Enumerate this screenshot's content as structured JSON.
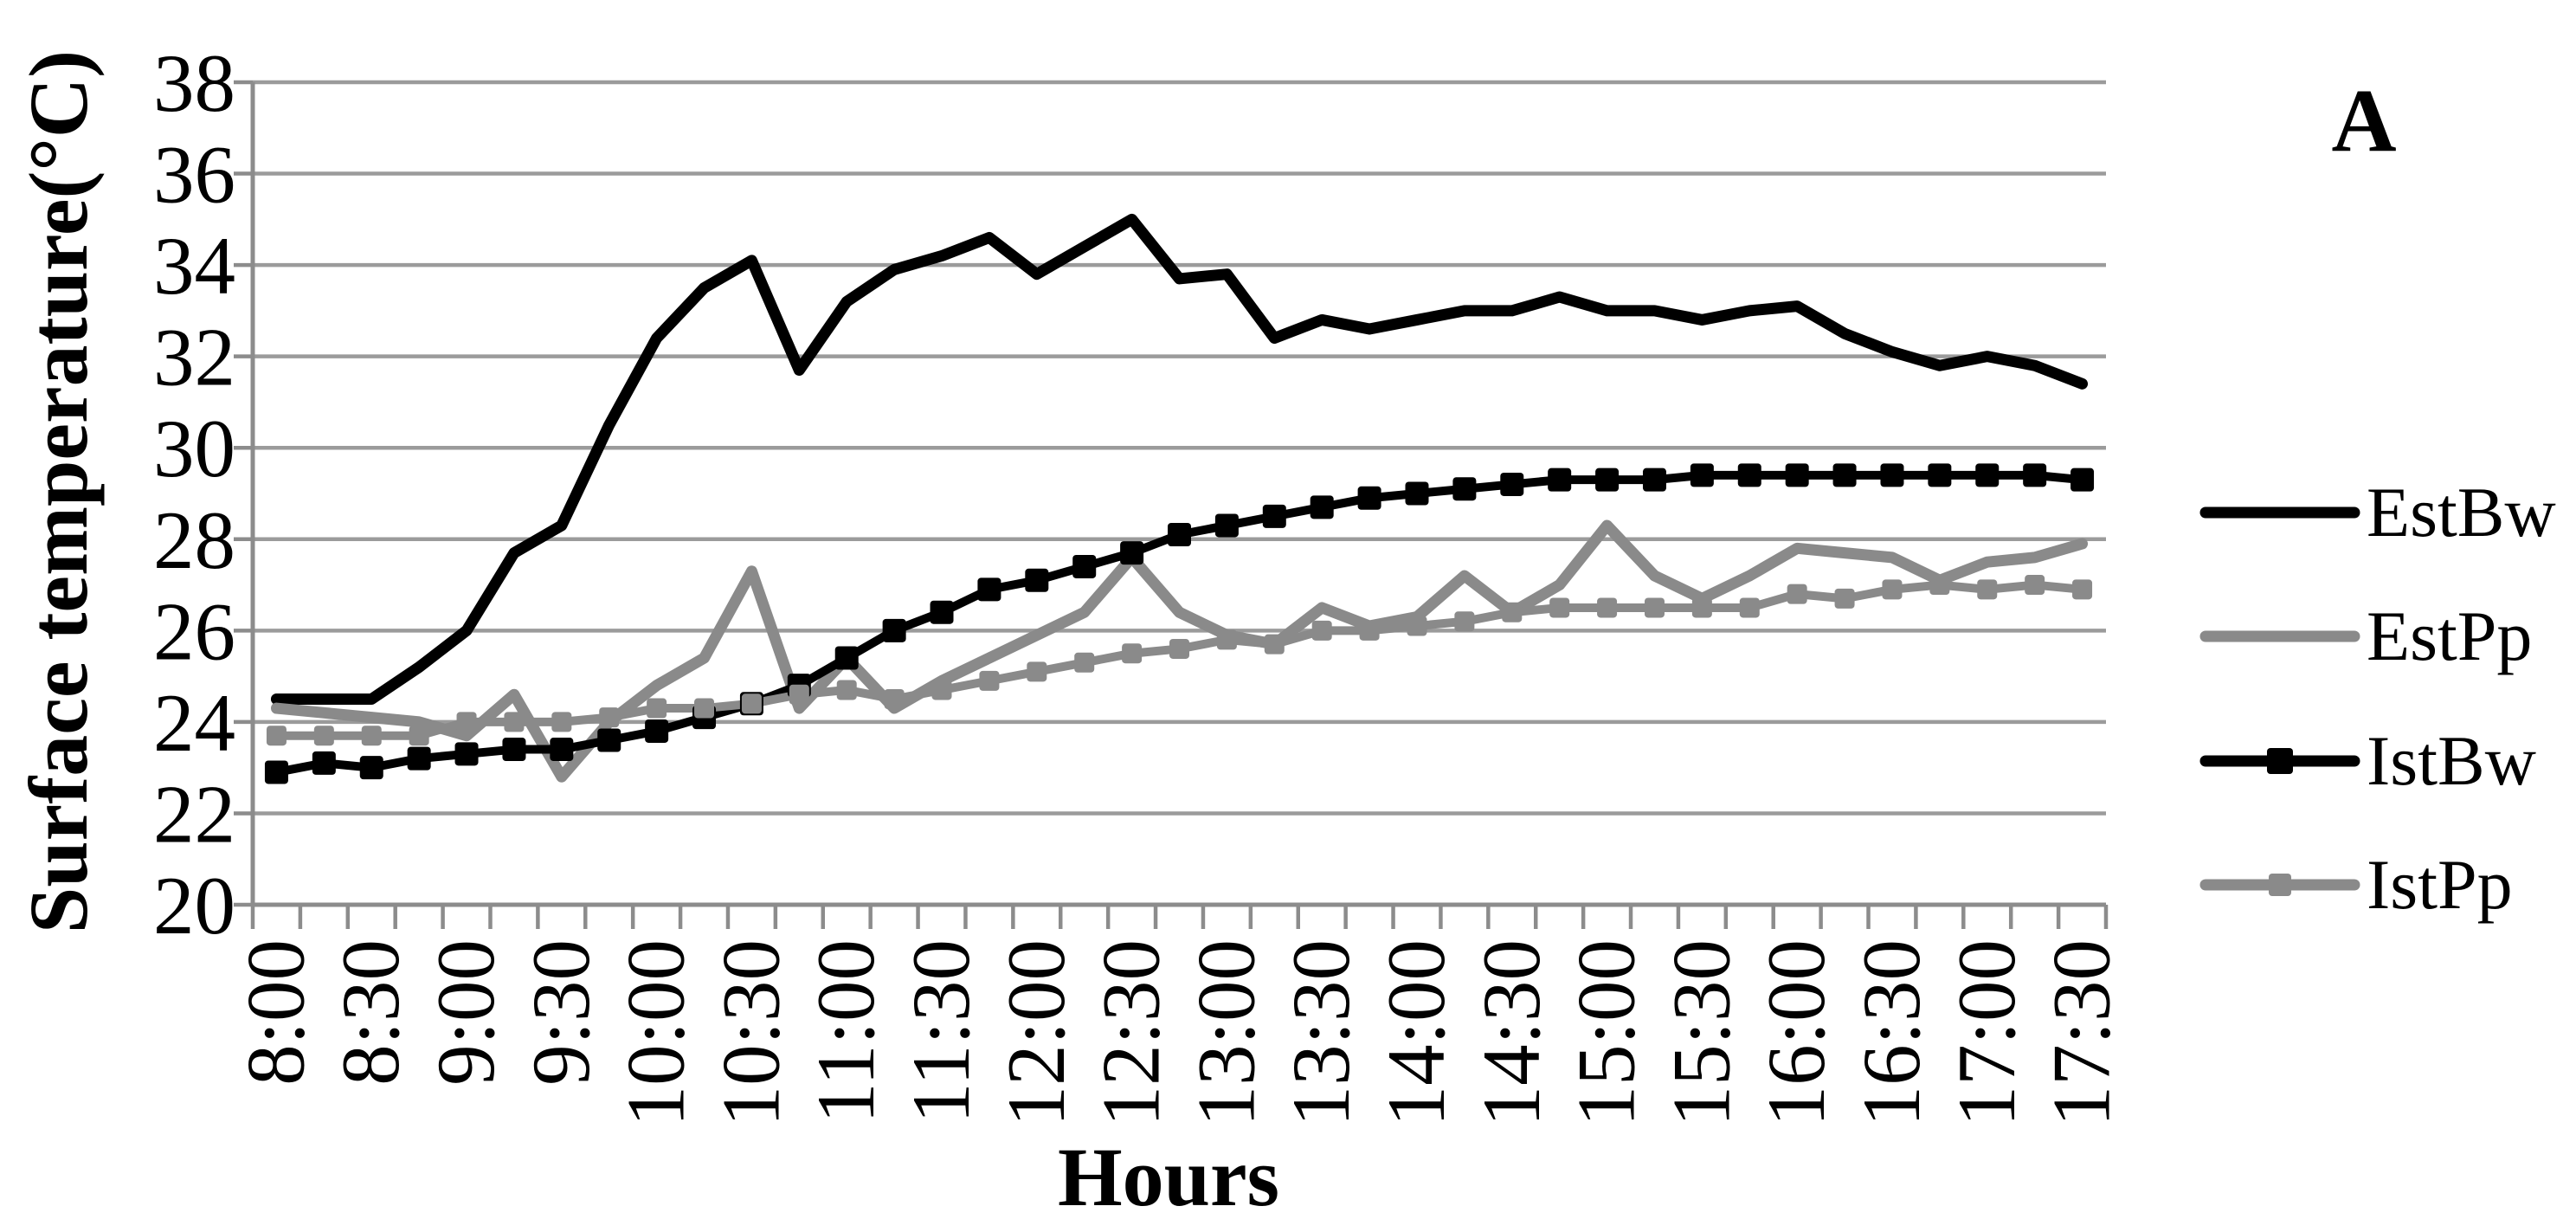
{
  "panel_label": "A",
  "colors": {
    "series_black": "#000000",
    "series_gray": "#8a8a8a",
    "gridline": "#9b9b9b",
    "axis": "#8c8c8c",
    "text": "#000000",
    "background": "#ffffff"
  },
  "chart_data": {
    "type": "line",
    "title": "",
    "xlabel": "Hours",
    "ylabel": "Surface temperature(°C)",
    "ylim": [
      20,
      38
    ],
    "ytick_step": 2,
    "ytick_labels": [
      "20",
      "22",
      "24",
      "26",
      "28",
      "30",
      "32",
      "34",
      "36",
      "38"
    ],
    "grid": "horizontal",
    "legend_position": "right",
    "x_label_every": 2,
    "categories": [
      "8:00",
      "8:15",
      "8:30",
      "8:45",
      "9:00",
      "9:15",
      "9:30",
      "9:45",
      "10:00",
      "10:15",
      "10:30",
      "10:45",
      "11:00",
      "11:15",
      "11:30",
      "11:45",
      "12:00",
      "12:15",
      "12:30",
      "12:45",
      "13:00",
      "13:15",
      "13:30",
      "13:45",
      "14:00",
      "14:15",
      "14:30",
      "14:45",
      "15:00",
      "15:15",
      "15:30",
      "15:45",
      "16:00",
      "16:15",
      "16:30",
      "16:45",
      "17:00",
      "17:15",
      "17:30"
    ],
    "series": [
      {
        "name": "EstBw",
        "color_key": "series_black",
        "line_width": 13,
        "marker": "none",
        "marker_size": 0,
        "values": [
          24.5,
          24.5,
          24.5,
          25.2,
          26.0,
          27.7,
          28.3,
          30.5,
          32.4,
          33.5,
          34.1,
          31.7,
          33.2,
          33.9,
          34.2,
          34.6,
          33.8,
          34.4,
          35.0,
          33.7,
          33.8,
          32.4,
          32.8,
          32.6,
          32.8,
          33.0,
          33.0,
          33.3,
          33.0,
          33.0,
          32.8,
          33.0,
          33.1,
          32.5,
          32.1,
          31.8,
          32.0,
          31.8,
          31.4
        ]
      },
      {
        "name": "EstPp",
        "color_key": "series_gray",
        "line_width": 13,
        "marker": "none",
        "marker_size": 0,
        "values": [
          24.3,
          24.2,
          24.1,
          24.0,
          23.7,
          24.6,
          22.8,
          24.0,
          24.8,
          25.4,
          27.3,
          24.3,
          25.4,
          24.3,
          24.9,
          25.4,
          25.9,
          26.4,
          27.6,
          26.4,
          25.9,
          25.7,
          26.5,
          26.1,
          26.3,
          27.2,
          26.4,
          27.0,
          28.3,
          27.2,
          26.7,
          27.2,
          27.8,
          27.7,
          27.6,
          27.1,
          27.5,
          27.6,
          27.9
        ]
      },
      {
        "name": "IstBw",
        "color_key": "series_black",
        "line_width": 10,
        "marker": "square",
        "marker_size": 27,
        "values": [
          22.9,
          23.1,
          23.0,
          23.2,
          23.3,
          23.4,
          23.4,
          23.6,
          23.8,
          24.1,
          24.4,
          24.8,
          25.4,
          26.0,
          26.4,
          26.9,
          27.1,
          27.4,
          27.7,
          28.1,
          28.3,
          28.5,
          28.7,
          28.9,
          29.0,
          29.1,
          29.2,
          29.3,
          29.3,
          29.3,
          29.4,
          29.4,
          29.4,
          29.4,
          29.4,
          29.4,
          29.4,
          29.4,
          29.3
        ]
      },
      {
        "name": "IstPp",
        "color_key": "series_gray",
        "line_width": 10,
        "marker": "square",
        "marker_size": 23,
        "values": [
          23.7,
          23.7,
          23.7,
          23.7,
          24.0,
          24.0,
          24.0,
          24.1,
          24.3,
          24.3,
          24.4,
          24.6,
          24.7,
          24.5,
          24.7,
          24.9,
          25.1,
          25.3,
          25.5,
          25.6,
          25.8,
          25.7,
          26.0,
          26.0,
          26.1,
          26.2,
          26.4,
          26.5,
          26.5,
          26.5,
          26.5,
          26.5,
          26.8,
          26.7,
          26.9,
          27.0,
          26.9,
          27.0,
          26.9
        ]
      }
    ]
  }
}
